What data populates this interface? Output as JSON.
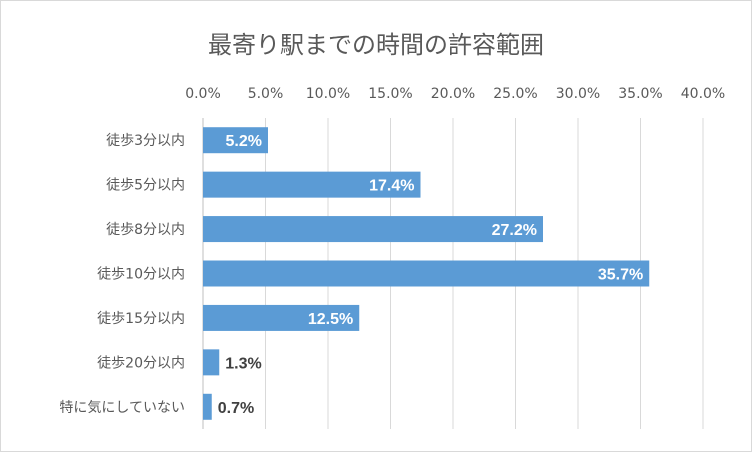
{
  "chart_data": {
    "type": "bar",
    "orientation": "horizontal",
    "title": "最寄り駅までの時間の許容範囲",
    "categories": [
      "徒歩3分以内",
      "徒歩5分以内",
      "徒歩8分以内",
      "徒歩10分以内",
      "徒歩15分以内",
      "徒歩20分以内",
      "特に気にしていない"
    ],
    "values": [
      5.2,
      17.4,
      27.2,
      35.7,
      12.5,
      1.3,
      0.7
    ],
    "data_labels": [
      "5.2%",
      "17.4%",
      "27.2%",
      "35.7%",
      "12.5%",
      "1.3%",
      "0.7%"
    ],
    "x_ticks": [
      0,
      5,
      10,
      15,
      20,
      25,
      30,
      35,
      40
    ],
    "x_tick_labels": [
      "0.0%",
      "5.0%",
      "10.0%",
      "15.0%",
      "20.0%",
      "25.0%",
      "30.0%",
      "35.0%",
      "40.0%"
    ],
    "xlim": [
      0,
      40
    ],
    "x_axis_position": "top",
    "grid": true,
    "legend": "none",
    "colors": {
      "bar": "#5b9bd5",
      "label_inside": "#ffffff",
      "label_outside": "#404040",
      "grid": "#d9d9d9"
    }
  }
}
